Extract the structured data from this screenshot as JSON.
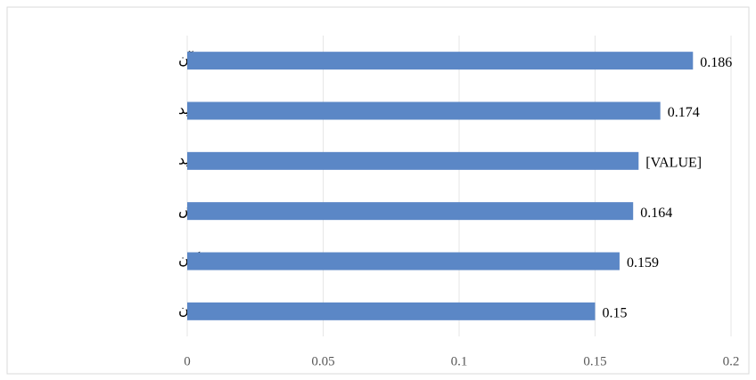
{
  "chart_data": {
    "type": "bar",
    "orientation": "horizontal",
    "categories": [
      "اطلاعات و تبادل آن",
      "واحد خرید",
      "واحد تولید",
      "واحد فروش",
      "تامین کنندگان",
      "مشتریان"
    ],
    "values": [
      0.186,
      0.174,
      0.166,
      0.164,
      0.159,
      0.15
    ],
    "value_labels": [
      "0.186",
      "0.174",
      "[VALUE]",
      "0.164",
      "0.159",
      "0.15"
    ],
    "color": "#5b87c6",
    "xlim": [
      0,
      0.2
    ],
    "xticks": [
      0,
      0.05,
      0.1,
      0.15,
      0.2
    ],
    "grid": true
  }
}
